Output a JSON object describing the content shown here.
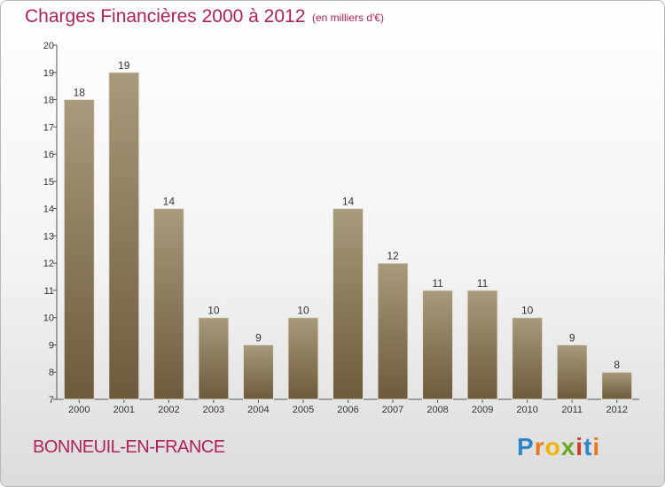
{
  "header": {
    "title": "Charges Financières 2000 à 2012",
    "unit": "(en milliers d'€)"
  },
  "footer": {
    "commune": "BONNEUIL-EN-FRANCE",
    "logo_letters": [
      "P",
      "r",
      "o",
      "x",
      "i",
      "t",
      "i"
    ]
  },
  "colors": {
    "title": "#b0205a",
    "bar_top": "#a89a7c",
    "bar_bottom": "#6c5a3c"
  },
  "chart_data": {
    "type": "bar",
    "title": "Charges Financières 2000 à 2012",
    "subtitle": "(en milliers d'€)",
    "categories": [
      "2000",
      "2001",
      "2002",
      "2003",
      "2004",
      "2005",
      "2006",
      "2007",
      "2008",
      "2009",
      "2010",
      "2011",
      "2012"
    ],
    "values": [
      18,
      19,
      14,
      10,
      9,
      10,
      14,
      12,
      11,
      11,
      10,
      9,
      8
    ],
    "ylim": [
      7,
      20
    ],
    "yticks": [
      7,
      8,
      9,
      10,
      11,
      12,
      13,
      14,
      15,
      16,
      17,
      18,
      19,
      20
    ],
    "grid": false,
    "xlabel": "",
    "ylabel": ""
  }
}
